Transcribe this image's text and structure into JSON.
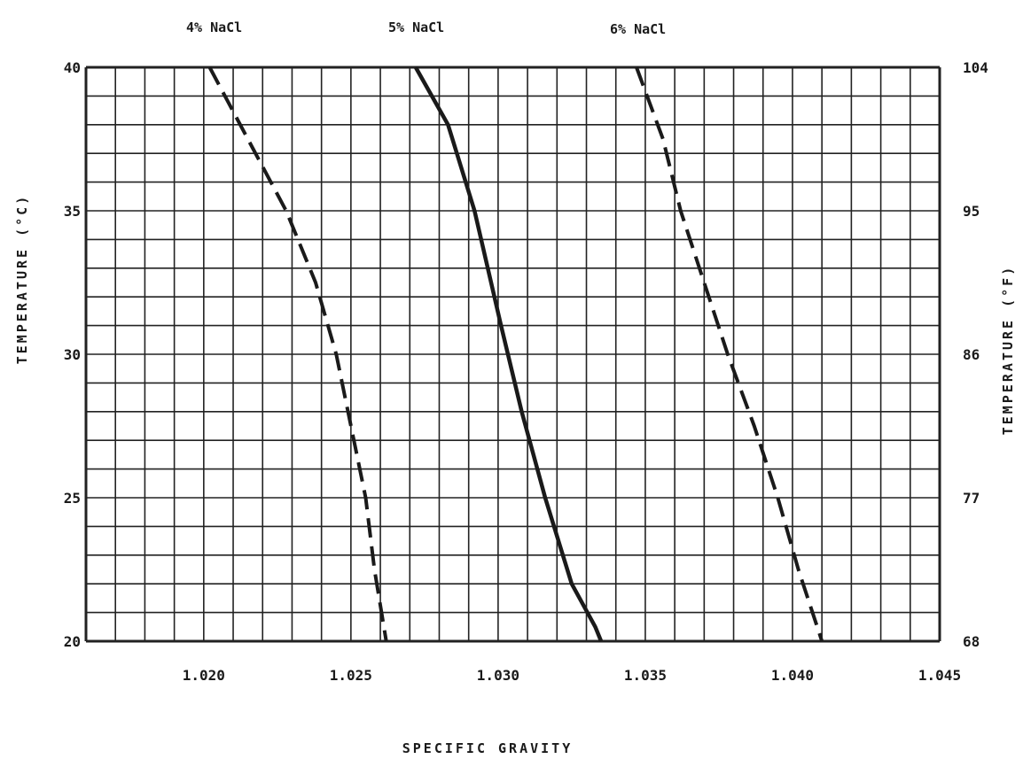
{
  "chart_data": {
    "type": "line",
    "xlabel": "SPECIFIC GRAVITY",
    "ylabel_left": "TEMPERATURE (°C)",
    "ylabel_right": "TEMPERATURE (°F)",
    "xlim": [
      1.016,
      1.045
    ],
    "ylim": [
      20,
      40
    ],
    "x_ticks": [
      {
        "value": 1.02,
        "label": "1.020"
      },
      {
        "value": 1.025,
        "label": "1.025"
      },
      {
        "value": 1.03,
        "label": "1.030"
      },
      {
        "value": 1.035,
        "label": "1.035"
      },
      {
        "value": 1.04,
        "label": "1.040"
      },
      {
        "value": 1.045,
        "label": "1.045"
      }
    ],
    "y_ticks_left": [
      {
        "value": 20,
        "label": "20"
      },
      {
        "value": 25,
        "label": "25"
      },
      {
        "value": 30,
        "label": "30"
      },
      {
        "value": 35,
        "label": "35"
      },
      {
        "value": 40,
        "label": "40"
      }
    ],
    "y_ticks_right": [
      {
        "value": 20,
        "label": "68"
      },
      {
        "value": 25,
        "label": "77"
      },
      {
        "value": 30,
        "label": "86"
      },
      {
        "value": 35,
        "label": "95"
      },
      {
        "value": 40,
        "label": "104"
      }
    ],
    "grid": true,
    "series": [
      {
        "name": "4% NaCl",
        "style": "dashed",
        "points": [
          [
            1.0202,
            40
          ],
          [
            1.0215,
            37.5
          ],
          [
            1.0228,
            35
          ],
          [
            1.0238,
            32.5
          ],
          [
            1.0245,
            30
          ],
          [
            1.025,
            27.5
          ],
          [
            1.0255,
            25
          ],
          [
            1.0258,
            22.5
          ],
          [
            1.0262,
            20
          ]
        ]
      },
      {
        "name": "5% NaCl",
        "style": "solid",
        "points": [
          [
            1.0272,
            40
          ],
          [
            1.0283,
            38
          ],
          [
            1.0292,
            35
          ],
          [
            1.0301,
            31
          ],
          [
            1.0308,
            28
          ],
          [
            1.0316,
            25
          ],
          [
            1.0325,
            22
          ],
          [
            1.0333,
            20.5
          ],
          [
            1.0335,
            20
          ]
        ]
      },
      {
        "name": "6% NaCl",
        "style": "dashed",
        "points": [
          [
            1.0347,
            40
          ],
          [
            1.0356,
            37.5
          ],
          [
            1.0362,
            35
          ],
          [
            1.037,
            32.5
          ],
          [
            1.0378,
            30
          ],
          [
            1.0387,
            27.5
          ],
          [
            1.0395,
            25
          ],
          [
            1.0402,
            22.5
          ],
          [
            1.041,
            20
          ]
        ]
      }
    ]
  },
  "colors": {
    "line": "#1a1a1a",
    "grid": "#222222",
    "background": "#ffffff"
  }
}
